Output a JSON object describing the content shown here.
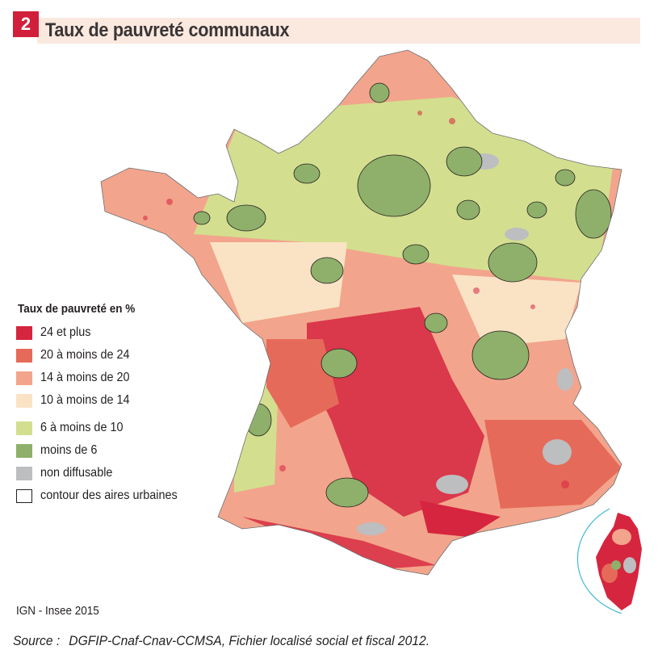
{
  "figure": {
    "number": "2",
    "title": "Taux de pauvreté communaux"
  },
  "legend": {
    "title": "Taux de pauvreté en %",
    "items": [
      {
        "label": "24 et plus",
        "color": "#d6253f"
      },
      {
        "label": "20 à moins de 24",
        "color": "#e66a5a"
      },
      {
        "label": "14 à moins de 20",
        "color": "#f2a58c"
      },
      {
        "label": "10 à moins de 14",
        "color": "#fae3c5"
      },
      {
        "label": "6 à moins de 10",
        "color": "#d3df8f"
      },
      {
        "label": "moins de 6",
        "color": "#8fb06a"
      },
      {
        "label": "non diffusable",
        "color": "#bcbec0"
      },
      {
        "label": "contour des aires urbaines",
        "color": "#ffffff"
      }
    ]
  },
  "credit": "IGN - Insee 2015",
  "source": {
    "prefix": "Source :",
    "text": "DGFIP-Cnaf-Cnav-CCMSA, Fichier localisé social et fiscal 2012."
  }
}
